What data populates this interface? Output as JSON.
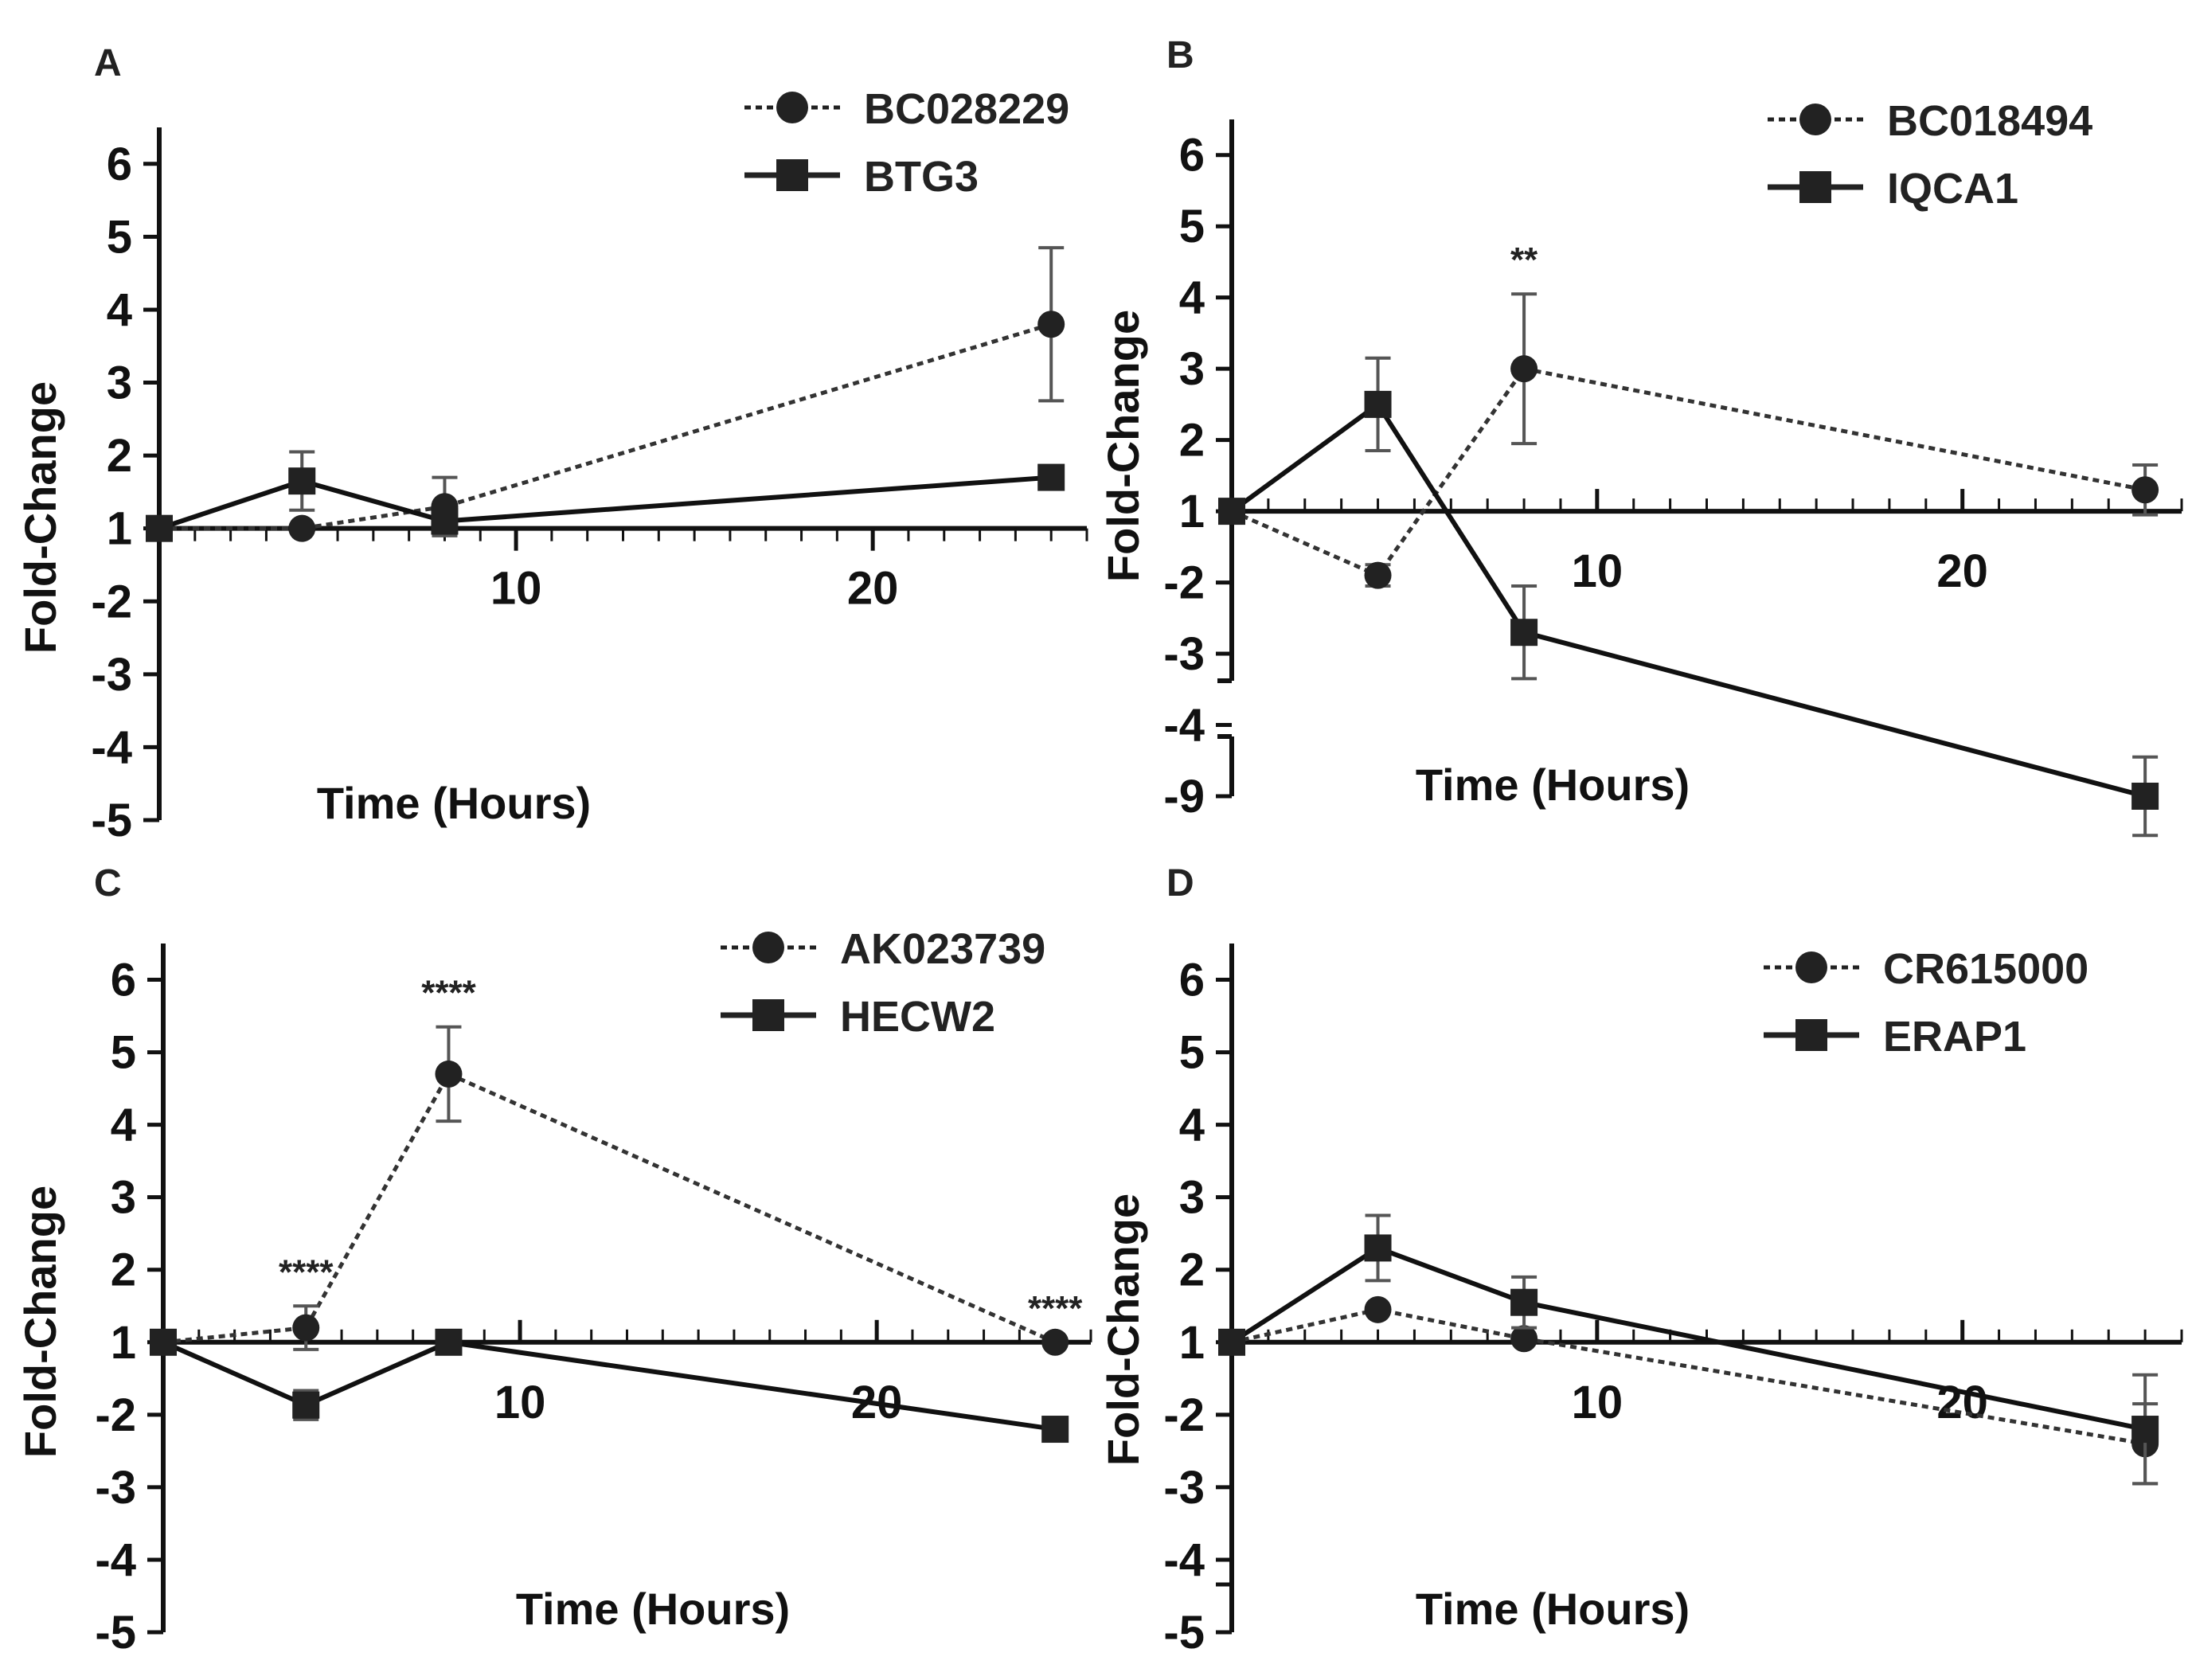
{
  "chart_data": [
    {
      "panel": "A",
      "type": "line",
      "xlabel": "Time (Hours)",
      "ylabel": "Fold-Change",
      "xlim": [
        0,
        26
      ],
      "xticks": [
        10,
        20
      ],
      "yticks": [
        "-5",
        "-4",
        "-3",
        "-2",
        "1",
        "2",
        "3",
        "4",
        "5",
        "6"
      ],
      "series": [
        {
          "name": "BC028229",
          "marker": "circle",
          "linestyle": "dotted",
          "x": [
            0,
            4,
            8,
            25
          ],
          "y": [
            1,
            1,
            1.3,
            3.8
          ],
          "err": [
            0,
            0,
            0.4,
            1.05
          ]
        },
        {
          "name": "BTG3",
          "marker": "square",
          "linestyle": "solid",
          "x": [
            0,
            4,
            8,
            25
          ],
          "y": [
            1,
            1.65,
            1.1,
            1.7
          ],
          "err": [
            0,
            0.4,
            0,
            0
          ]
        }
      ],
      "annotations": []
    },
    {
      "panel": "B",
      "type": "line",
      "xlabel": "Time (Hours)",
      "ylabel": "Fold-Change",
      "xlim": [
        0,
        26
      ],
      "xticks": [
        10,
        20
      ],
      "yticks": [
        "-9",
        "-4",
        "-3",
        "-2",
        "1",
        "2",
        "3",
        "4",
        "5",
        "6"
      ],
      "series": [
        {
          "name": "BC018494",
          "marker": "circle",
          "linestyle": "dotted",
          "x": [
            0,
            4,
            8,
            25
          ],
          "y": [
            1,
            -1.7,
            3,
            1.3
          ],
          "err": [
            0,
            0.15,
            1.05,
            0.35
          ]
        },
        {
          "name": "IQCA1",
          "marker": "square",
          "linestyle": "solid",
          "x": [
            0,
            4,
            8,
            25
          ],
          "y": [
            1,
            2.5,
            -2.7,
            -9
          ],
          "err": [
            0,
            0.65,
            0.65,
            0.55
          ]
        }
      ],
      "annotations": [
        {
          "text": "**",
          "x": 8
        }
      ]
    },
    {
      "panel": "C",
      "type": "line",
      "xlabel": "Time (Hours)",
      "ylabel": "Fold-Change",
      "xlim": [
        0,
        26
      ],
      "xticks": [
        10,
        20
      ],
      "yticks": [
        "-5",
        "-4",
        "-3",
        "-2",
        "1",
        "2",
        "3",
        "4",
        "5",
        "6"
      ],
      "series": [
        {
          "name": "AK023739",
          "marker": "circle",
          "linestyle": "dotted",
          "x": [
            0,
            4,
            8,
            25
          ],
          "y": [
            1,
            1.2,
            4.7,
            1
          ],
          "err": [
            0,
            0.3,
            0.65,
            0
          ]
        },
        {
          "name": "HECW2",
          "marker": "square",
          "linestyle": "solid",
          "x": [
            0,
            4,
            8,
            25
          ],
          "y": [
            1,
            -1.6,
            1,
            -2.2
          ],
          "err": [
            0,
            0.2,
            0,
            0
          ]
        }
      ],
      "annotations": [
        {
          "text": "****",
          "x": 4
        },
        {
          "text": "****",
          "x": 8
        },
        {
          "text": "****",
          "x": 25
        }
      ]
    },
    {
      "panel": "D",
      "type": "line",
      "xlabel": "Time (Hours)",
      "ylabel": "Fold-Change",
      "xlim": [
        0,
        26
      ],
      "xticks": [
        10,
        20
      ],
      "yticks": [
        "-5",
        "-4",
        "-3",
        "-2",
        "1",
        "2",
        "3",
        "4",
        "5",
        "6"
      ],
      "series": [
        {
          "name": "CR615000",
          "marker": "circle",
          "linestyle": "dotted",
          "x": [
            0,
            4,
            8,
            25
          ],
          "y": [
            1,
            1.45,
            1.05,
            -2.4
          ],
          "err": [
            0,
            0,
            0,
            0.55
          ]
        },
        {
          "name": "ERAP1",
          "marker": "square",
          "linestyle": "solid",
          "x": [
            0,
            4,
            8,
            25
          ],
          "y": [
            1,
            2.3,
            1.55,
            -2.2
          ],
          "err": [
            0,
            0.45,
            0.35,
            0.75
          ]
        }
      ],
      "annotations": []
    }
  ]
}
